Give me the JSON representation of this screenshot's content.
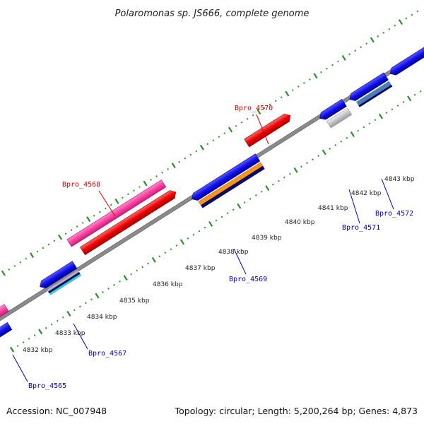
{
  "title": "Polaromonas sp. JS666, complete genome",
  "footer": {
    "accession": "Accession: NC_007948",
    "summary": "Topology: circular; Length: 5,200,264 bp; Genes: 4,873"
  },
  "scale_labels": [
    "4832 kbp",
    "4833 kbp",
    "4834 kbp",
    "4835 kbp",
    "4836 kbp",
    "4837 kbp",
    "4838 kbp",
    "4839 kbp",
    "4840 kbp",
    "4841 kbp",
    "4842 kbp",
    "4843 kbp"
  ],
  "gene_labels": {
    "Bpro_4568": "Bpro_4568",
    "Bpro_4570": "Bpro_4570",
    "Bpro_4565": "Bpro_4565",
    "Bpro_4567": "Bpro_4567",
    "Bpro_4569": "Bpro_4569",
    "Bpro_4571": "Bpro_4571",
    "Bpro_4572": "Bpro_4572"
  },
  "colors": {
    "backbone": "#8a8a8a",
    "tick": "#2e8b2e",
    "forward_red": "#ee0000",
    "forward_pink": "#ff3fa0",
    "reverse_blue": "#1010ee",
    "orange": "#f7941d",
    "navy": "#0a0a66",
    "cyan": "#33cccc",
    "gray": "#c8c8c8",
    "steel": "#4a7fb5",
    "label_red": "#d40000",
    "label_blue": "#0000b0"
  }
}
